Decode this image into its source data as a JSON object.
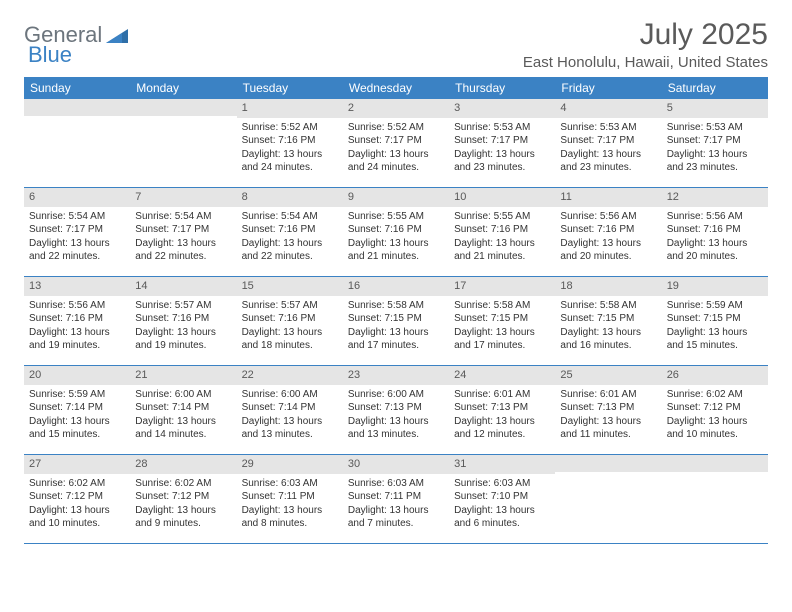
{
  "brand": {
    "part1": "General",
    "part2": "Blue"
  },
  "title": "July 2025",
  "location": "East Honolulu, Hawaii, United States",
  "colors": {
    "header_bg": "#3b82c4",
    "daynum_bg": "#e5e5e5",
    "text": "#333333",
    "muted": "#6c757d"
  },
  "weekdays": [
    "Sunday",
    "Monday",
    "Tuesday",
    "Wednesday",
    "Thursday",
    "Friday",
    "Saturday"
  ],
  "first_weekday_index": 2,
  "days": [
    {
      "n": 1,
      "sunrise": "5:52 AM",
      "sunset": "7:16 PM",
      "daylight": "13 hours and 24 minutes."
    },
    {
      "n": 2,
      "sunrise": "5:52 AM",
      "sunset": "7:17 PM",
      "daylight": "13 hours and 24 minutes."
    },
    {
      "n": 3,
      "sunrise": "5:53 AM",
      "sunset": "7:17 PM",
      "daylight": "13 hours and 23 minutes."
    },
    {
      "n": 4,
      "sunrise": "5:53 AM",
      "sunset": "7:17 PM",
      "daylight": "13 hours and 23 minutes."
    },
    {
      "n": 5,
      "sunrise": "5:53 AM",
      "sunset": "7:17 PM",
      "daylight": "13 hours and 23 minutes."
    },
    {
      "n": 6,
      "sunrise": "5:54 AM",
      "sunset": "7:17 PM",
      "daylight": "13 hours and 22 minutes."
    },
    {
      "n": 7,
      "sunrise": "5:54 AM",
      "sunset": "7:17 PM",
      "daylight": "13 hours and 22 minutes."
    },
    {
      "n": 8,
      "sunrise": "5:54 AM",
      "sunset": "7:16 PM",
      "daylight": "13 hours and 22 minutes."
    },
    {
      "n": 9,
      "sunrise": "5:55 AM",
      "sunset": "7:16 PM",
      "daylight": "13 hours and 21 minutes."
    },
    {
      "n": 10,
      "sunrise": "5:55 AM",
      "sunset": "7:16 PM",
      "daylight": "13 hours and 21 minutes."
    },
    {
      "n": 11,
      "sunrise": "5:56 AM",
      "sunset": "7:16 PM",
      "daylight": "13 hours and 20 minutes."
    },
    {
      "n": 12,
      "sunrise": "5:56 AM",
      "sunset": "7:16 PM",
      "daylight": "13 hours and 20 minutes."
    },
    {
      "n": 13,
      "sunrise": "5:56 AM",
      "sunset": "7:16 PM",
      "daylight": "13 hours and 19 minutes."
    },
    {
      "n": 14,
      "sunrise": "5:57 AM",
      "sunset": "7:16 PM",
      "daylight": "13 hours and 19 minutes."
    },
    {
      "n": 15,
      "sunrise": "5:57 AM",
      "sunset": "7:16 PM",
      "daylight": "13 hours and 18 minutes."
    },
    {
      "n": 16,
      "sunrise": "5:58 AM",
      "sunset": "7:15 PM",
      "daylight": "13 hours and 17 minutes."
    },
    {
      "n": 17,
      "sunrise": "5:58 AM",
      "sunset": "7:15 PM",
      "daylight": "13 hours and 17 minutes."
    },
    {
      "n": 18,
      "sunrise": "5:58 AM",
      "sunset": "7:15 PM",
      "daylight": "13 hours and 16 minutes."
    },
    {
      "n": 19,
      "sunrise": "5:59 AM",
      "sunset": "7:15 PM",
      "daylight": "13 hours and 15 minutes."
    },
    {
      "n": 20,
      "sunrise": "5:59 AM",
      "sunset": "7:14 PM",
      "daylight": "13 hours and 15 minutes."
    },
    {
      "n": 21,
      "sunrise": "6:00 AM",
      "sunset": "7:14 PM",
      "daylight": "13 hours and 14 minutes."
    },
    {
      "n": 22,
      "sunrise": "6:00 AM",
      "sunset": "7:14 PM",
      "daylight": "13 hours and 13 minutes."
    },
    {
      "n": 23,
      "sunrise": "6:00 AM",
      "sunset": "7:13 PM",
      "daylight": "13 hours and 13 minutes."
    },
    {
      "n": 24,
      "sunrise": "6:01 AM",
      "sunset": "7:13 PM",
      "daylight": "13 hours and 12 minutes."
    },
    {
      "n": 25,
      "sunrise": "6:01 AM",
      "sunset": "7:13 PM",
      "daylight": "13 hours and 11 minutes."
    },
    {
      "n": 26,
      "sunrise": "6:02 AM",
      "sunset": "7:12 PM",
      "daylight": "13 hours and 10 minutes."
    },
    {
      "n": 27,
      "sunrise": "6:02 AM",
      "sunset": "7:12 PM",
      "daylight": "13 hours and 10 minutes."
    },
    {
      "n": 28,
      "sunrise": "6:02 AM",
      "sunset": "7:12 PM",
      "daylight": "13 hours and 9 minutes."
    },
    {
      "n": 29,
      "sunrise": "6:03 AM",
      "sunset": "7:11 PM",
      "daylight": "13 hours and 8 minutes."
    },
    {
      "n": 30,
      "sunrise": "6:03 AM",
      "sunset": "7:11 PM",
      "daylight": "13 hours and 7 minutes."
    },
    {
      "n": 31,
      "sunrise": "6:03 AM",
      "sunset": "7:10 PM",
      "daylight": "13 hours and 6 minutes."
    }
  ],
  "labels": {
    "sunrise": "Sunrise:",
    "sunset": "Sunset:",
    "daylight": "Daylight:"
  }
}
